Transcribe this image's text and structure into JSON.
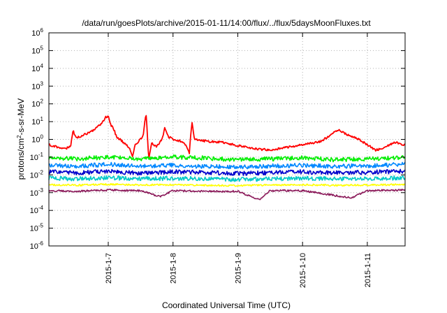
{
  "chart_data": {
    "type": "line",
    "title": "/data/run/goesPlots/archive/2015-01-11/14:00/flux/../flux/5daysMoonFluxes.txt",
    "xlabel": "Coordinated Universal Time (UTC)",
    "ylabel": {
      "prefix": "protons/cm",
      "sup": "2",
      "suffix": "-s-sr-MeV"
    },
    "y_scale": "log",
    "ylim": [
      1e-06,
      1000000.0
    ],
    "y_ticks": [
      {
        "exp": -6,
        "base": "10",
        "sup": "-6"
      },
      {
        "exp": -5,
        "base": "10",
        "sup": "-5"
      },
      {
        "exp": -4,
        "base": "10",
        "sup": "-4"
      },
      {
        "exp": -3,
        "base": "10",
        "sup": "-3"
      },
      {
        "exp": -2,
        "base": "10",
        "sup": "-2"
      },
      {
        "exp": -1,
        "base": "10",
        "sup": "-1"
      },
      {
        "exp": 0,
        "base": "10",
        "sup": "0"
      },
      {
        "exp": 1,
        "base": "10",
        "sup": "1"
      },
      {
        "exp": 2,
        "base": "10",
        "sup": "2"
      },
      {
        "exp": 3,
        "base": "10",
        "sup": "3"
      },
      {
        "exp": 4,
        "base": "10",
        "sup": "4"
      },
      {
        "exp": 5,
        "base": "10",
        "sup": "5"
      },
      {
        "exp": 6,
        "base": "10",
        "sup": "6"
      }
    ],
    "xlim": [
      "2015-01-06T02:00",
      "2015-01-11T14:00"
    ],
    "x_ticks": [
      {
        "label": "2015-1-7",
        "date": "2015-01-07T00:00"
      },
      {
        "label": "2015-1-8",
        "date": "2015-01-08T00:00"
      },
      {
        "label": "2015-1-9",
        "date": "2015-01-09T00:00"
      },
      {
        "label": "2015-1-10",
        "date": "2015-01-10T00:00"
      },
      {
        "label": "2015-1-11",
        "date": "2015-01-11T00:00"
      }
    ],
    "grid": true,
    "legend": "none",
    "series": [
      {
        "color": "#ff0000",
        "points": [
          [
            "2015-01-06T02:00",
            0.5
          ],
          [
            "2015-01-06T05:00",
            0.38
          ],
          [
            "2015-01-06T08:00",
            0.3
          ],
          [
            "2015-01-06T10:00",
            0.4
          ],
          [
            "2015-01-06T11:00",
            3.0
          ],
          [
            "2015-01-06T12:00",
            1.2
          ],
          [
            "2015-01-06T15:00",
            1.8
          ],
          [
            "2015-01-06T18:00",
            3.0
          ],
          [
            "2015-01-06T20:00",
            5.0
          ],
          [
            "2015-01-06T22:00",
            10
          ],
          [
            "2015-01-06T23:00",
            18
          ],
          [
            "2015-01-07T00:00",
            20
          ],
          [
            "2015-01-07T01:00",
            6
          ],
          [
            "2015-01-07T02:00",
            4
          ],
          [
            "2015-01-07T03:00",
            1.5
          ],
          [
            "2015-01-07T06:00",
            0.6
          ],
          [
            "2015-01-07T08:00",
            0.3
          ],
          [
            "2015-01-07T09:00",
            0.12
          ],
          [
            "2015-01-07T10:00",
            0.5
          ],
          [
            "2015-01-07T12:00",
            1.0
          ],
          [
            "2015-01-07T13:00",
            2.0
          ],
          [
            "2015-01-07T14:00",
            30
          ],
          [
            "2015-01-07T15:00",
            0.08
          ],
          [
            "2015-01-07T16:00",
            0.6
          ],
          [
            "2015-01-07T18:00",
            0.4
          ],
          [
            "2015-01-07T20:00",
            1.0
          ],
          [
            "2015-01-07T21:00",
            5.0
          ],
          [
            "2015-01-07T22:00",
            1.5
          ],
          [
            "2015-01-08T00:00",
            1.0
          ],
          [
            "2015-01-08T03:00",
            0.8
          ],
          [
            "2015-01-08T05:00",
            0.45
          ],
          [
            "2015-01-08T06:00",
            0.15
          ],
          [
            "2015-01-08T07:00",
            10
          ],
          [
            "2015-01-08T08:00",
            1.0
          ],
          [
            "2015-01-08T12:00",
            0.8
          ],
          [
            "2015-01-08T18:00",
            0.7
          ],
          [
            "2015-01-09T00:00",
            0.45
          ],
          [
            "2015-01-09T06:00",
            0.3
          ],
          [
            "2015-01-09T12:00",
            0.25
          ],
          [
            "2015-01-09T18:00",
            0.35
          ],
          [
            "2015-01-10T00:00",
            0.5
          ],
          [
            "2015-01-10T06:00",
            0.7
          ],
          [
            "2015-01-10T10:00",
            1.5
          ],
          [
            "2015-01-10T13:00",
            3.5
          ],
          [
            "2015-01-10T16:00",
            2.0
          ],
          [
            "2015-01-10T20:00",
            1.2
          ],
          [
            "2015-01-11T00:00",
            0.5
          ],
          [
            "2015-01-11T03:00",
            0.25
          ],
          [
            "2015-01-11T06:00",
            0.3
          ],
          [
            "2015-01-11T10:00",
            0.7
          ],
          [
            "2015-01-11T14:00",
            0.5
          ]
        ]
      },
      {
        "color": "#00ee00",
        "points": [
          [
            "2015-01-06T02:00",
            0.09
          ],
          [
            "2015-01-06T12:00",
            0.08
          ],
          [
            "2015-01-07T00:00",
            0.1
          ],
          [
            "2015-01-07T12:00",
            0.08
          ],
          [
            "2015-01-08T00:00",
            0.1
          ],
          [
            "2015-01-08T12:00",
            0.09
          ],
          [
            "2015-01-09T00:00",
            0.07
          ],
          [
            "2015-01-09T12:00",
            0.08
          ],
          [
            "2015-01-10T00:00",
            0.09
          ],
          [
            "2015-01-10T12:00",
            0.07
          ],
          [
            "2015-01-11T00:00",
            0.08
          ],
          [
            "2015-01-11T14:00",
            0.1
          ]
        ]
      },
      {
        "color": "#0088ff",
        "points": [
          [
            "2015-01-06T02:00",
            0.035
          ],
          [
            "2015-01-06T12:00",
            0.03
          ],
          [
            "2015-01-07T00:00",
            0.04
          ],
          [
            "2015-01-07T12:00",
            0.03
          ],
          [
            "2015-01-08T00:00",
            0.035
          ],
          [
            "2015-01-08T12:00",
            0.03
          ],
          [
            "2015-01-09T00:00",
            0.028
          ],
          [
            "2015-01-09T12:00",
            0.032
          ],
          [
            "2015-01-10T00:00",
            0.035
          ],
          [
            "2015-01-10T12:00",
            0.03
          ],
          [
            "2015-01-11T00:00",
            0.033
          ],
          [
            "2015-01-11T14:00",
            0.04
          ]
        ]
      },
      {
        "color": "#0000cc",
        "points": [
          [
            "2015-01-06T02:00",
            0.015
          ],
          [
            "2015-01-06T12:00",
            0.013
          ],
          [
            "2015-01-07T00:00",
            0.016
          ],
          [
            "2015-01-07T12:00",
            0.012
          ],
          [
            "2015-01-08T00:00",
            0.015
          ],
          [
            "2015-01-08T12:00",
            0.014
          ],
          [
            "2015-01-09T00:00",
            0.012
          ],
          [
            "2015-01-09T12:00",
            0.013
          ],
          [
            "2015-01-10T00:00",
            0.015
          ],
          [
            "2015-01-10T12:00",
            0.013
          ],
          [
            "2015-01-11T00:00",
            0.014
          ],
          [
            "2015-01-11T14:00",
            0.016
          ]
        ]
      },
      {
        "color": "#00c8c8",
        "points": [
          [
            "2015-01-06T02:00",
            0.0065
          ],
          [
            "2015-01-06T12:00",
            0.006
          ],
          [
            "2015-01-07T00:00",
            0.007
          ],
          [
            "2015-01-07T12:00",
            0.006
          ],
          [
            "2015-01-08T00:00",
            0.0065
          ],
          [
            "2015-01-08T12:00",
            0.006
          ],
          [
            "2015-01-09T00:00",
            0.0055
          ],
          [
            "2015-01-09T12:00",
            0.006
          ],
          [
            "2015-01-10T00:00",
            0.0065
          ],
          [
            "2015-01-10T12:00",
            0.006
          ],
          [
            "2015-01-11T00:00",
            0.006
          ],
          [
            "2015-01-11T14:00",
            0.007
          ]
        ]
      },
      {
        "color": "#ffff00",
        "points": [
          [
            "2015-01-06T02:00",
            0.0028
          ],
          [
            "2015-01-06T12:00",
            0.0026
          ],
          [
            "2015-01-07T00:00",
            0.003
          ],
          [
            "2015-01-07T12:00",
            0.0027
          ],
          [
            "2015-01-08T00:00",
            0.0028
          ],
          [
            "2015-01-08T12:00",
            0.0026
          ],
          [
            "2015-01-09T00:00",
            0.0025
          ],
          [
            "2015-01-09T12:00",
            0.0027
          ],
          [
            "2015-01-10T00:00",
            0.0028
          ],
          [
            "2015-01-10T12:00",
            0.0026
          ],
          [
            "2015-01-11T00:00",
            0.0027
          ],
          [
            "2015-01-11T14:00",
            0.0029
          ]
        ]
      },
      {
        "color": "#8b1a5a",
        "points": [
          [
            "2015-01-06T02:00",
            0.0013
          ],
          [
            "2015-01-06T12:00",
            0.0012
          ],
          [
            "2015-01-07T00:00",
            0.0014
          ],
          [
            "2015-01-07T12:00",
            0.0013
          ],
          [
            "2015-01-07T19:00",
            0.0006
          ],
          [
            "2015-01-08T00:00",
            0.0013
          ],
          [
            "2015-01-08T12:00",
            0.0012
          ],
          [
            "2015-01-09T00:00",
            0.0012
          ],
          [
            "2015-01-09T08:00",
            0.0004
          ],
          [
            "2015-01-09T12:00",
            0.0013
          ],
          [
            "2015-01-10T00:00",
            0.0013
          ],
          [
            "2015-01-10T18:00",
            0.0005
          ],
          [
            "2015-01-11T00:00",
            0.0013
          ],
          [
            "2015-01-11T14:00",
            0.0014
          ]
        ]
      }
    ]
  }
}
